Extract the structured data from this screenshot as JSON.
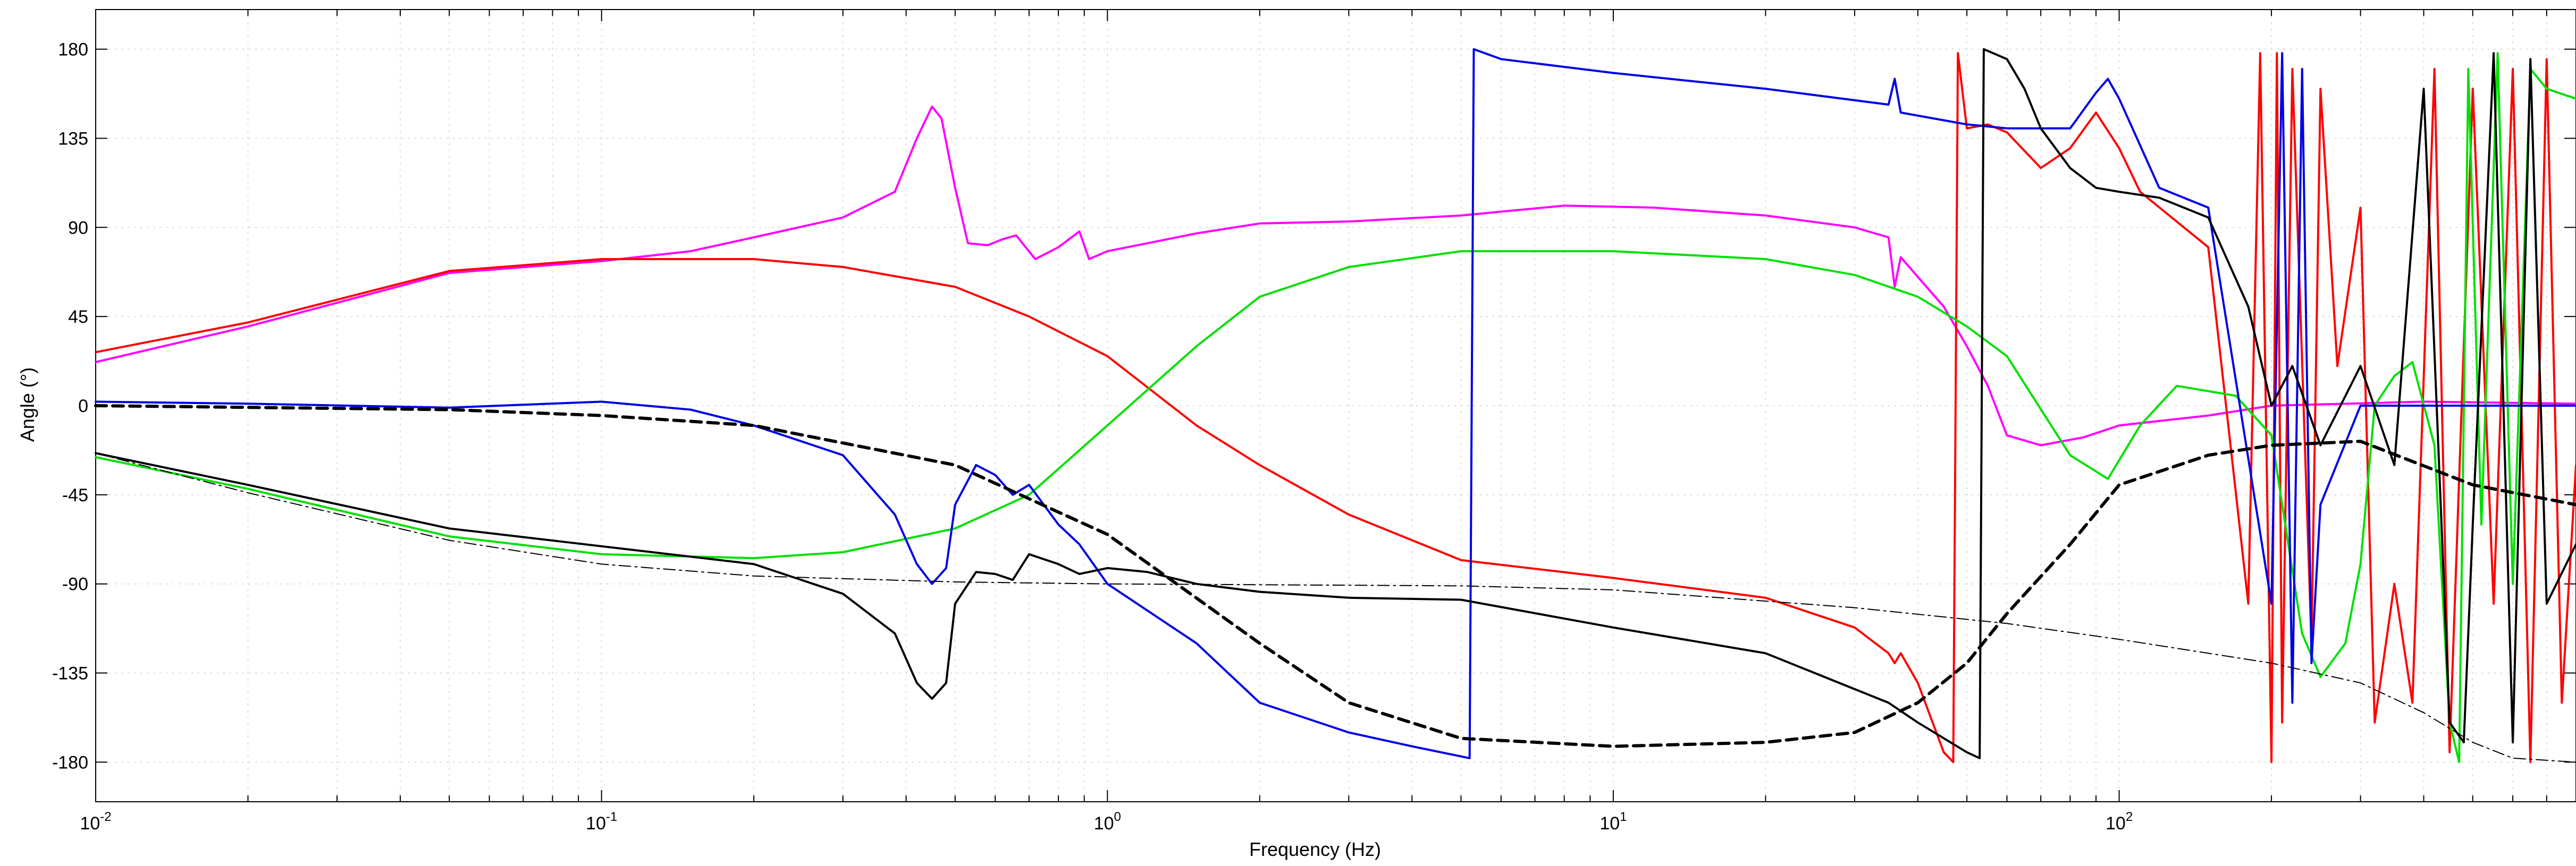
{
  "chart_data": {
    "type": "line",
    "xlabel": "Frequency (Hz)",
    "ylabel": "Angle (°)",
    "xscale": "log",
    "xlim": [
      0.01,
      800
    ],
    "ylim": [
      -200,
      200
    ],
    "grid": true,
    "legend": "none",
    "x_ticks": [
      {
        "value": 0.01,
        "base": "10",
        "exp": "-2"
      },
      {
        "value": 0.1,
        "base": "10",
        "exp": "-1"
      },
      {
        "value": 1,
        "base": "10",
        "exp": "0"
      },
      {
        "value": 10,
        "base": "10",
        "exp": "1"
      },
      {
        "value": 100,
        "base": "10",
        "exp": "2"
      }
    ],
    "y_ticks": [
      {
        "value": 180,
        "label": "180"
      },
      {
        "value": 135,
        "label": "135"
      },
      {
        "value": 90,
        "label": "90"
      },
      {
        "value": 45,
        "label": "45"
      },
      {
        "value": 0,
        "label": "0"
      },
      {
        "value": -45,
        "label": "-45"
      },
      {
        "value": -90,
        "label": "-90"
      },
      {
        "value": -135,
        "label": "-135"
      },
      {
        "value": -180,
        "label": "-180"
      }
    ],
    "series": [
      {
        "color": "#ff00ff",
        "style": "solid",
        "width": 4,
        "points": [
          [
            0.01,
            22
          ],
          [
            0.02,
            40
          ],
          [
            0.05,
            67
          ],
          [
            0.1,
            73
          ],
          [
            0.15,
            78
          ],
          [
            0.2,
            85
          ],
          [
            0.3,
            95
          ],
          [
            0.38,
            108
          ],
          [
            0.42,
            135
          ],
          [
            0.45,
            151
          ],
          [
            0.47,
            145
          ],
          [
            0.5,
            110
          ],
          [
            0.53,
            82
          ],
          [
            0.58,
            81
          ],
          [
            0.62,
            84
          ],
          [
            0.66,
            86
          ],
          [
            0.72,
            74
          ],
          [
            0.8,
            80
          ],
          [
            0.88,
            88
          ],
          [
            0.92,
            74
          ],
          [
            1,
            78
          ],
          [
            1.2,
            82
          ],
          [
            1.5,
            87
          ],
          [
            2,
            92
          ],
          [
            3,
            93
          ],
          [
            5,
            96
          ],
          [
            8,
            101
          ],
          [
            12,
            100
          ],
          [
            20,
            96
          ],
          [
            30,
            90
          ],
          [
            35,
            85
          ],
          [
            36,
            60
          ],
          [
            37,
            75
          ],
          [
            40,
            65
          ],
          [
            45,
            50
          ],
          [
            50,
            30
          ],
          [
            55,
            10
          ],
          [
            60,
            -15
          ],
          [
            70,
            -20
          ],
          [
            85,
            -16
          ],
          [
            100,
            -10
          ],
          [
            150,
            -5
          ],
          [
            200,
            0
          ],
          [
            400,
            2
          ],
          [
            800,
            1
          ]
        ]
      },
      {
        "color": "#ff0000",
        "style": "solid",
        "width": 4,
        "points": [
          [
            0.01,
            27
          ],
          [
            0.02,
            42
          ],
          [
            0.05,
            68
          ],
          [
            0.1,
            74
          ],
          [
            0.2,
            74
          ],
          [
            0.3,
            70
          ],
          [
            0.5,
            60
          ],
          [
            0.7,
            45
          ],
          [
            1,
            25
          ],
          [
            1.5,
            -10
          ],
          [
            2,
            -30
          ],
          [
            3,
            -55
          ],
          [
            5,
            -78
          ],
          [
            10,
            -87
          ],
          [
            20,
            -97
          ],
          [
            30,
            -112
          ],
          [
            35,
            -125
          ],
          [
            36,
            -130
          ],
          [
            37,
            -125
          ],
          [
            40,
            -140
          ],
          [
            45,
            -175
          ],
          [
            47,
            -180
          ],
          [
            48,
            178
          ],
          [
            50,
            140
          ],
          [
            55,
            142
          ],
          [
            60,
            138
          ],
          [
            70,
            120
          ],
          [
            80,
            130
          ],
          [
            90,
            148
          ],
          [
            100,
            130
          ],
          [
            110,
            108
          ],
          [
            150,
            80
          ],
          [
            180,
            -100
          ],
          [
            190,
            178
          ],
          [
            200,
            -180
          ],
          [
            205,
            178
          ],
          [
            210,
            -160
          ],
          [
            220,
            170
          ],
          [
            240,
            -120
          ],
          [
            250,
            160
          ],
          [
            270,
            20
          ],
          [
            300,
            100
          ],
          [
            320,
            -160
          ],
          [
            350,
            -90
          ],
          [
            380,
            -150
          ],
          [
            420,
            170
          ],
          [
            450,
            -175
          ],
          [
            500,
            160
          ],
          [
            550,
            -100
          ],
          [
            600,
            170
          ],
          [
            650,
            -180
          ],
          [
            700,
            175
          ],
          [
            750,
            -150
          ],
          [
            800,
            -30
          ]
        ]
      },
      {
        "color": "#00e000",
        "style": "solid",
        "width": 4,
        "points": [
          [
            0.01,
            -26
          ],
          [
            0.02,
            -42
          ],
          [
            0.05,
            -66
          ],
          [
            0.1,
            -75
          ],
          [
            0.2,
            -77
          ],
          [
            0.3,
            -74
          ],
          [
            0.5,
            -62
          ],
          [
            0.7,
            -45
          ],
          [
            1,
            -10
          ],
          [
            1.5,
            30
          ],
          [
            2,
            55
          ],
          [
            3,
            70
          ],
          [
            5,
            78
          ],
          [
            10,
            78
          ],
          [
            20,
            74
          ],
          [
            30,
            66
          ],
          [
            40,
            55
          ],
          [
            50,
            40
          ],
          [
            60,
            25
          ],
          [
            80,
            -25
          ],
          [
            95,
            -37
          ],
          [
            110,
            -10
          ],
          [
            130,
            10
          ],
          [
            170,
            5
          ],
          [
            200,
            -15
          ],
          [
            230,
            -115
          ],
          [
            250,
            -137
          ],
          [
            280,
            -120
          ],
          [
            300,
            -80
          ],
          [
            320,
            0
          ],
          [
            350,
            15
          ],
          [
            380,
            22
          ],
          [
            420,
            -20
          ],
          [
            450,
            -160
          ],
          [
            470,
            -180
          ],
          [
            490,
            170
          ],
          [
            520,
            -60
          ],
          [
            560,
            178
          ],
          [
            600,
            -90
          ],
          [
            650,
            170
          ],
          [
            700,
            160
          ],
          [
            800,
            155
          ]
        ]
      },
      {
        "color": "#0000e6",
        "style": "solid",
        "width": 4,
        "points": [
          [
            0.01,
            2
          ],
          [
            0.02,
            1
          ],
          [
            0.05,
            -1
          ],
          [
            0.1,
            2
          ],
          [
            0.15,
            -2
          ],
          [
            0.2,
            -10
          ],
          [
            0.3,
            -25
          ],
          [
            0.38,
            -55
          ],
          [
            0.42,
            -80
          ],
          [
            0.45,
            -90
          ],
          [
            0.48,
            -82
          ],
          [
            0.5,
            -50
          ],
          [
            0.55,
            -30
          ],
          [
            0.6,
            -35
          ],
          [
            0.65,
            -45
          ],
          [
            0.7,
            -40
          ],
          [
            0.8,
            -60
          ],
          [
            0.88,
            -70
          ],
          [
            1,
            -90
          ],
          [
            1.5,
            -120
          ],
          [
            2,
            -150
          ],
          [
            3,
            -165
          ],
          [
            4,
            -172
          ],
          [
            5.2,
            -178
          ],
          [
            5.3,
            180
          ],
          [
            6,
            175
          ],
          [
            10,
            168
          ],
          [
            20,
            160
          ],
          [
            35,
            152
          ],
          [
            36,
            165
          ],
          [
            37,
            148
          ],
          [
            50,
            142
          ],
          [
            60,
            140
          ],
          [
            80,
            140
          ],
          [
            90,
            158
          ],
          [
            95,
            165
          ],
          [
            100,
            155
          ],
          [
            120,
            110
          ],
          [
            150,
            100
          ],
          [
            200,
            -100
          ],
          [
            210,
            178
          ],
          [
            220,
            -150
          ],
          [
            230,
            170
          ],
          [
            240,
            -130
          ],
          [
            250,
            -50
          ],
          [
            300,
            0
          ],
          [
            400,
            0
          ],
          [
            500,
            0
          ],
          [
            600,
            0
          ],
          [
            800,
            0
          ]
        ]
      },
      {
        "color": "#000000",
        "style": "solid",
        "width": 4,
        "points": [
          [
            0.01,
            -24
          ],
          [
            0.02,
            -40
          ],
          [
            0.05,
            -62
          ],
          [
            0.1,
            -71
          ],
          [
            0.2,
            -80
          ],
          [
            0.3,
            -95
          ],
          [
            0.38,
            -115
          ],
          [
            0.42,
            -140
          ],
          [
            0.45,
            -148
          ],
          [
            0.48,
            -140
          ],
          [
            0.5,
            -100
          ],
          [
            0.55,
            -84
          ],
          [
            0.6,
            -85
          ],
          [
            0.65,
            -88
          ],
          [
            0.7,
            -75
          ],
          [
            0.8,
            -80
          ],
          [
            0.88,
            -85
          ],
          [
            1,
            -82
          ],
          [
            1.2,
            -84
          ],
          [
            1.5,
            -90
          ],
          [
            2,
            -94
          ],
          [
            3,
            -97
          ],
          [
            5,
            -98
          ],
          [
            10,
            -112
          ],
          [
            20,
            -125
          ],
          [
            35,
            -150
          ],
          [
            40,
            -160
          ],
          [
            50,
            -175
          ],
          [
            53,
            -178
          ],
          [
            54,
            180
          ],
          [
            60,
            175
          ],
          [
            65,
            160
          ],
          [
            70,
            140
          ],
          [
            80,
            120
          ],
          [
            90,
            110
          ],
          [
            100,
            108
          ],
          [
            120,
            105
          ],
          [
            150,
            95
          ],
          [
            180,
            50
          ],
          [
            200,
            0
          ],
          [
            220,
            20
          ],
          [
            250,
            -20
          ],
          [
            300,
            20
          ],
          [
            350,
            -30
          ],
          [
            400,
            160
          ],
          [
            450,
            -160
          ],
          [
            480,
            -170
          ],
          [
            500,
            -60
          ],
          [
            550,
            178
          ],
          [
            600,
            -170
          ],
          [
            650,
            175
          ],
          [
            700,
            -100
          ],
          [
            800,
            -70
          ]
        ]
      },
      {
        "color": "#000000",
        "style": "dashed",
        "width": 6,
        "points": [
          [
            0.01,
            0
          ],
          [
            0.05,
            -2
          ],
          [
            0.1,
            -5
          ],
          [
            0.2,
            -10
          ],
          [
            0.5,
            -30
          ],
          [
            1,
            -65
          ],
          [
            2,
            -120
          ],
          [
            3,
            -150
          ],
          [
            5,
            -168
          ],
          [
            10,
            -172
          ],
          [
            20,
            -170
          ],
          [
            30,
            -165
          ],
          [
            40,
            -150
          ],
          [
            50,
            -130
          ],
          [
            60,
            -105
          ],
          [
            80,
            -70
          ],
          [
            100,
            -40
          ],
          [
            150,
            -25
          ],
          [
            200,
            -20
          ],
          [
            300,
            -18
          ],
          [
            500,
            -40
          ],
          [
            800,
            -50
          ]
        ]
      },
      {
        "color": "#000000",
        "style": "dashdot",
        "width": 2,
        "points": [
          [
            0.01,
            -24
          ],
          [
            0.02,
            -44
          ],
          [
            0.05,
            -68
          ],
          [
            0.1,
            -80
          ],
          [
            0.2,
            -86
          ],
          [
            0.5,
            -89
          ],
          [
            1,
            -90
          ],
          [
            5,
            -91
          ],
          [
            10,
            -93
          ],
          [
            30,
            -102
          ],
          [
            60,
            -110
          ],
          [
            100,
            -118
          ],
          [
            200,
            -130
          ],
          [
            300,
            -140
          ],
          [
            400,
            -155
          ],
          [
            500,
            -170
          ],
          [
            600,
            -178
          ],
          [
            800,
            -180
          ]
        ]
      }
    ]
  }
}
